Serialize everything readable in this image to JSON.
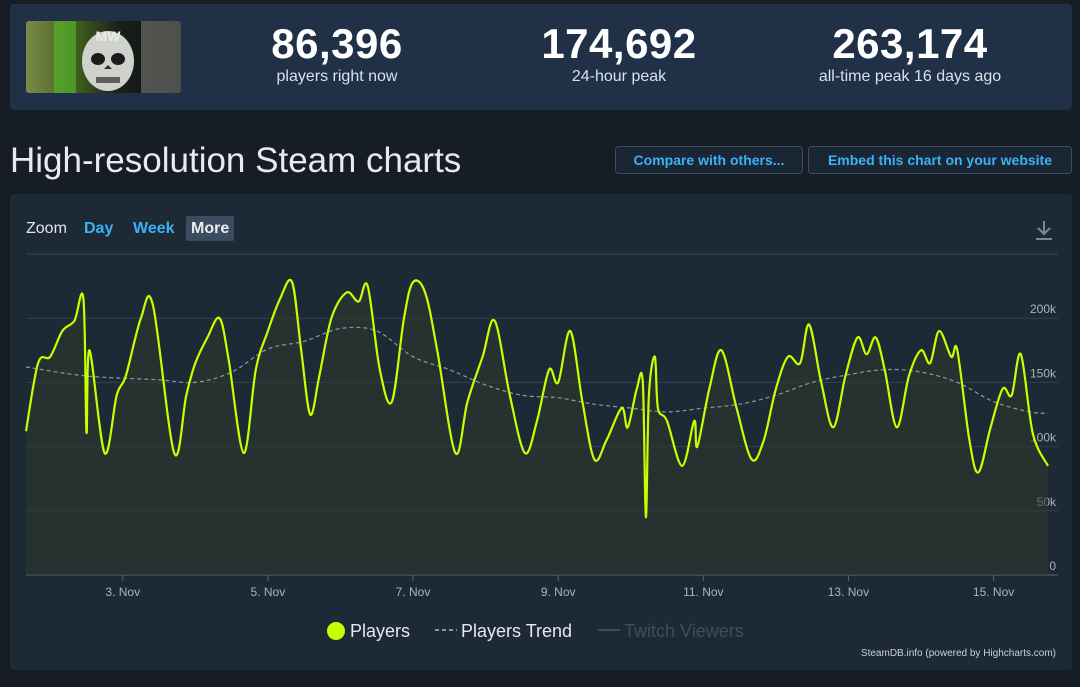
{
  "stats": [
    {
      "value": "86,396",
      "label": "players right now"
    },
    {
      "value": "174,692",
      "label": "24-hour peak"
    },
    {
      "value": "263,174",
      "label": "all-time peak 16 days ago"
    }
  ],
  "page": {
    "title": "High-resolution Steam charts",
    "compare_label": "Compare with others...",
    "embed_label": "Embed this chart on your website"
  },
  "zoom": {
    "label": "Zoom",
    "options": [
      "Day",
      "Week",
      "More"
    ],
    "active": "More"
  },
  "icons": {
    "download": "download-icon",
    "thumbnail": "game-thumbnail-icon"
  },
  "legend": {
    "players": "Players",
    "trend": "Players Trend",
    "twitch": "Twitch Viewers"
  },
  "credits": "SteamDB.info (powered by Highcharts.com)",
  "colors": {
    "players": "#c8ff00",
    "trend": "#8c96a0",
    "twitch": "#3e4d5e",
    "accent": "#3bb2f6"
  },
  "chart_data": {
    "type": "line",
    "title": "",
    "xlabel": "",
    "ylabel": "",
    "x_range": [
      "2022-11-01T16:00",
      "2022-11-15T18:00"
    ],
    "ylim": [
      0,
      250000
    ],
    "y_ticks": [
      0,
      50000,
      100000,
      150000,
      200000
    ],
    "y_tick_labels": [
      "0",
      "50k",
      "100k",
      "150k",
      "200k"
    ],
    "x_ticks": [
      "2022-11-03",
      "2022-11-05",
      "2022-11-07",
      "2022-11-09",
      "2022-11-11",
      "2022-11-13",
      "2022-11-15"
    ],
    "x_tick_labels": [
      "3. Nov",
      "5. Nov",
      "7. Nov",
      "9. Nov",
      "11. Nov",
      "13. Nov",
      "15. Nov"
    ],
    "grid": true,
    "legend_position": "bottom-center",
    "series": [
      {
        "name": "Players",
        "style": "solid",
        "points": [
          [
            "2022-11-01T16:00",
            112000
          ],
          [
            "2022-11-01T20:00",
            165000
          ],
          [
            "2022-11-02T00:00",
            170000
          ],
          [
            "2022-11-02T04:00",
            190000
          ],
          [
            "2022-11-02T08:00",
            198000
          ],
          [
            "2022-11-02T11:00",
            215000
          ],
          [
            "2022-11-02T12:00",
            111000
          ],
          [
            "2022-11-02T13:00",
            175000
          ],
          [
            "2022-11-02T18:00",
            95000
          ],
          [
            "2022-11-02T22:00",
            140000
          ],
          [
            "2022-11-03T01:00",
            155000
          ],
          [
            "2022-11-03T06:00",
            200000
          ],
          [
            "2022-11-03T10:00",
            210000
          ],
          [
            "2022-11-03T17:00",
            95000
          ],
          [
            "2022-11-03T21:00",
            140000
          ],
          [
            "2022-11-04T00:00",
            165000
          ],
          [
            "2022-11-04T04:00",
            185000
          ],
          [
            "2022-11-04T08:00",
            200000
          ],
          [
            "2022-11-04T11:00",
            168000
          ],
          [
            "2022-11-04T16:00",
            95000
          ],
          [
            "2022-11-04T20:00",
            160000
          ],
          [
            "2022-11-05T00:00",
            190000
          ],
          [
            "2022-11-05T04:00",
            215000
          ],
          [
            "2022-11-05T08:00",
            228000
          ],
          [
            "2022-11-05T11:00",
            175000
          ],
          [
            "2022-11-05T14:00",
            125000
          ],
          [
            "2022-11-05T17:00",
            155000
          ],
          [
            "2022-11-05T21:00",
            200000
          ],
          [
            "2022-11-06T02:00",
            220000
          ],
          [
            "2022-11-06T06:00",
            213000
          ],
          [
            "2022-11-06T09:00",
            225000
          ],
          [
            "2022-11-06T13:00",
            160000
          ],
          [
            "2022-11-06T17:00",
            135000
          ],
          [
            "2022-11-06T21:00",
            200000
          ],
          [
            "2022-11-07T00:00",
            228000
          ],
          [
            "2022-11-07T04:00",
            220000
          ],
          [
            "2022-11-07T08:00",
            175000
          ],
          [
            "2022-11-07T14:00",
            95000
          ],
          [
            "2022-11-07T18:00",
            135000
          ],
          [
            "2022-11-07T23:00",
            170000
          ],
          [
            "2022-11-08T03:00",
            198000
          ],
          [
            "2022-11-08T08:00",
            140000
          ],
          [
            "2022-11-08T13:00",
            95000
          ],
          [
            "2022-11-08T17:00",
            120000
          ],
          [
            "2022-11-08T21:00",
            160000
          ],
          [
            "2022-11-09T00:00",
            150000
          ],
          [
            "2022-11-09T04:00",
            190000
          ],
          [
            "2022-11-09T08:00",
            135000
          ],
          [
            "2022-11-09T12:00",
            90000
          ],
          [
            "2022-11-09T16:00",
            105000
          ],
          [
            "2022-11-09T21:00",
            130000
          ],
          [
            "2022-11-09T23:00",
            115000
          ],
          [
            "2022-11-10T02:00",
            145000
          ],
          [
            "2022-11-10T04:00",
            150000
          ],
          [
            "2022-11-10T05:00",
            45000
          ],
          [
            "2022-11-10T06:00",
            140000
          ],
          [
            "2022-11-10T08:00",
            170000
          ],
          [
            "2022-11-10T09:00",
            130000
          ],
          [
            "2022-11-10T12:00",
            120000
          ],
          [
            "2022-11-10T17:00",
            85000
          ],
          [
            "2022-11-10T21:00",
            120000
          ],
          [
            "2022-11-10T22:00",
            100000
          ],
          [
            "2022-11-11T02:00",
            145000
          ],
          [
            "2022-11-11T06:00",
            175000
          ],
          [
            "2022-11-11T11:00",
            130000
          ],
          [
            "2022-11-11T16:00",
            90000
          ],
          [
            "2022-11-11T20:00",
            105000
          ],
          [
            "2022-11-12T00:00",
            145000
          ],
          [
            "2022-11-12T04:00",
            170000
          ],
          [
            "2022-11-12T08:00",
            165000
          ],
          [
            "2022-11-12T11:00",
            195000
          ],
          [
            "2022-11-12T15:00",
            150000
          ],
          [
            "2022-11-12T19:00",
            115000
          ],
          [
            "2022-11-12T23:00",
            155000
          ],
          [
            "2022-11-13T03:00",
            185000
          ],
          [
            "2022-11-13T06:00",
            172000
          ],
          [
            "2022-11-13T09:00",
            185000
          ],
          [
            "2022-11-13T12:00",
            160000
          ],
          [
            "2022-11-13T16:00",
            115000
          ],
          [
            "2022-11-13T20:00",
            155000
          ],
          [
            "2022-11-14T00:00",
            175000
          ],
          [
            "2022-11-14T03:00",
            165000
          ],
          [
            "2022-11-14T06:00",
            190000
          ],
          [
            "2022-11-14T10:00",
            170000
          ],
          [
            "2022-11-14T12:00",
            175000
          ],
          [
            "2022-11-14T16:00",
            105000
          ],
          [
            "2022-11-14T19:00",
            80000
          ],
          [
            "2022-11-14T23:00",
            115000
          ],
          [
            "2022-11-15T03:00",
            145000
          ],
          [
            "2022-11-15T06:00",
            140000
          ],
          [
            "2022-11-15T09:00",
            172000
          ],
          [
            "2022-11-15T13:00",
            110000
          ],
          [
            "2022-11-15T18:00",
            85000
          ]
        ]
      },
      {
        "name": "Players Trend",
        "style": "dashed",
        "points": [
          [
            "2022-11-01T16:00",
            162000
          ],
          [
            "2022-11-02T12:00",
            155000
          ],
          [
            "2022-11-03T12:00",
            152000
          ],
          [
            "2022-11-04T00:00",
            150000
          ],
          [
            "2022-11-04T12:00",
            158000
          ],
          [
            "2022-11-05T00:00",
            176000
          ],
          [
            "2022-11-05T12:00",
            182000
          ],
          [
            "2022-11-06T00:00",
            192000
          ],
          [
            "2022-11-06T12:00",
            190000
          ],
          [
            "2022-11-07T00:00",
            170000
          ],
          [
            "2022-11-07T12:00",
            160000
          ],
          [
            "2022-11-08T00:00",
            148000
          ],
          [
            "2022-11-08T12:00",
            140000
          ],
          [
            "2022-11-09T00:00",
            138000
          ],
          [
            "2022-11-09T12:00",
            133000
          ],
          [
            "2022-11-10T00:00",
            130000
          ],
          [
            "2022-11-10T12:00",
            127000
          ],
          [
            "2022-11-11T00:00",
            130000
          ],
          [
            "2022-11-11T12:00",
            133000
          ],
          [
            "2022-11-12T00:00",
            140000
          ],
          [
            "2022-11-12T12:00",
            150000
          ],
          [
            "2022-11-13T00:00",
            156000
          ],
          [
            "2022-11-13T12:00",
            160000
          ],
          [
            "2022-11-14T00:00",
            158000
          ],
          [
            "2022-11-14T12:00",
            150000
          ],
          [
            "2022-11-15T00:00",
            135000
          ],
          [
            "2022-11-15T12:00",
            127000
          ],
          [
            "2022-11-15T18:00",
            126000
          ]
        ]
      },
      {
        "name": "Twitch Viewers",
        "style": "solid",
        "visible": false,
        "points": []
      }
    ]
  }
}
